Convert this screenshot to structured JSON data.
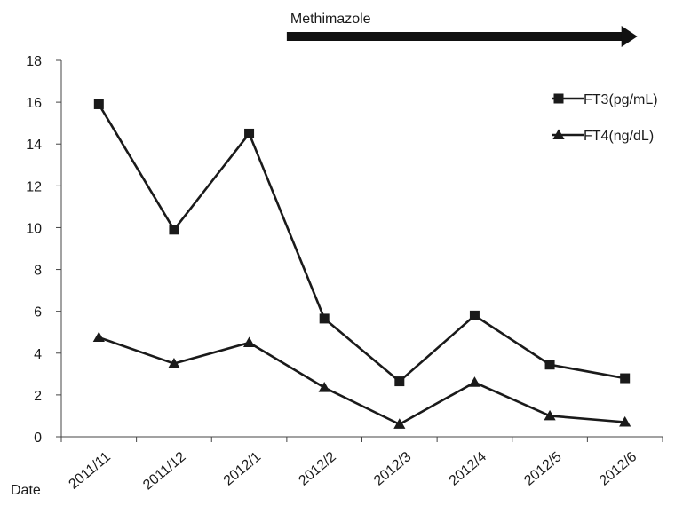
{
  "chart_data": {
    "type": "line",
    "title": "",
    "xlabel": "Date",
    "ylabel": "",
    "categories": [
      "2011/11",
      "2011/12",
      "2012/1",
      "2012/2",
      "2012/3",
      "2012/4",
      "2012/5",
      "2012/6"
    ],
    "ylim": [
      0,
      18
    ],
    "yticks": [
      0,
      2,
      4,
      6,
      8,
      10,
      12,
      14,
      16,
      18
    ],
    "grid": false,
    "legend_position": "right",
    "series": [
      {
        "name": "FT3(pg/mL)",
        "marker": "square",
        "color": "#1a1a1a",
        "values": [
          15.9,
          9.9,
          14.5,
          5.65,
          2.65,
          5.8,
          3.45,
          2.8
        ]
      },
      {
        "name": "FT4(ng/dL)",
        "marker": "triangle",
        "color": "#1a1a1a",
        "values": [
          4.75,
          3.5,
          4.5,
          2.35,
          0.6,
          2.6,
          1.0,
          0.7
        ]
      }
    ],
    "annotation": {
      "label": "Methimazole",
      "type": "arrow",
      "start_category": "2012/2",
      "end_category": "2012/6",
      "direction": "right"
    }
  }
}
